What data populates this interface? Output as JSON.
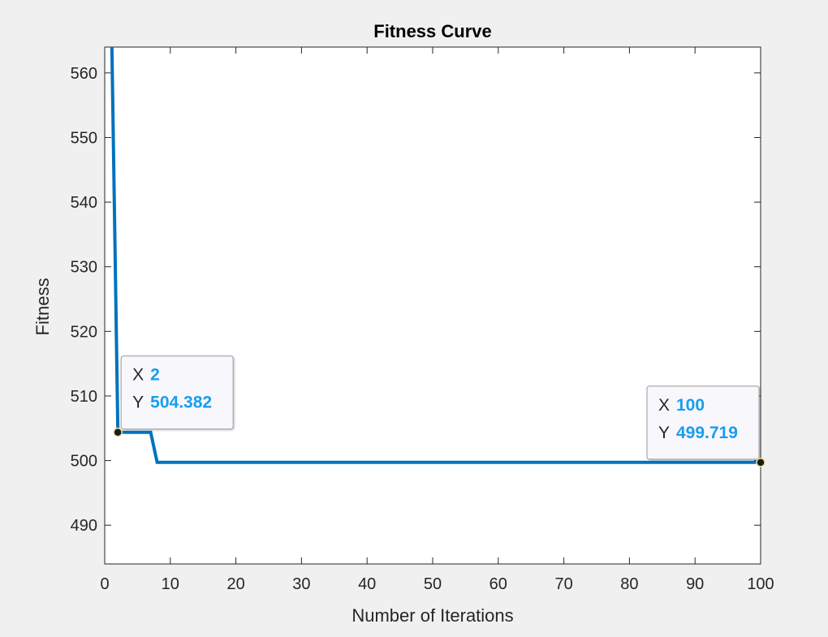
{
  "chart_data": {
    "type": "line",
    "title": "Fitness Curve",
    "xlabel": "Number of Iterations",
    "ylabel": "Fitness",
    "xlim": [
      0,
      100
    ],
    "ylim": [
      484,
      564
    ],
    "xticks": [
      0,
      10,
      20,
      30,
      40,
      50,
      60,
      70,
      80,
      90,
      100
    ],
    "yticks": [
      490,
      500,
      510,
      520,
      530,
      540,
      550,
      560
    ],
    "grid": false,
    "series": [
      {
        "color": "#0072bd",
        "x": [
          1,
          2,
          7,
          8,
          100
        ],
        "y": [
          570,
          504.382,
          504.382,
          499.719,
          499.719
        ]
      }
    ],
    "datatips": [
      {
        "x_key": "X",
        "y_key": "Y",
        "x": 2,
        "y": 504.382,
        "x_text": "2",
        "y_text": "504.382",
        "placement": "upper-right"
      },
      {
        "x_key": "X",
        "y_key": "Y",
        "x": 100,
        "y": 499.719,
        "x_text": "100",
        "y_text": "499.719",
        "placement": "upper-left"
      }
    ],
    "colors": {
      "axes_bg": "#ffffff",
      "figure_bg": "#f0f0f0",
      "datatip_value": "#1a9cf0"
    }
  }
}
